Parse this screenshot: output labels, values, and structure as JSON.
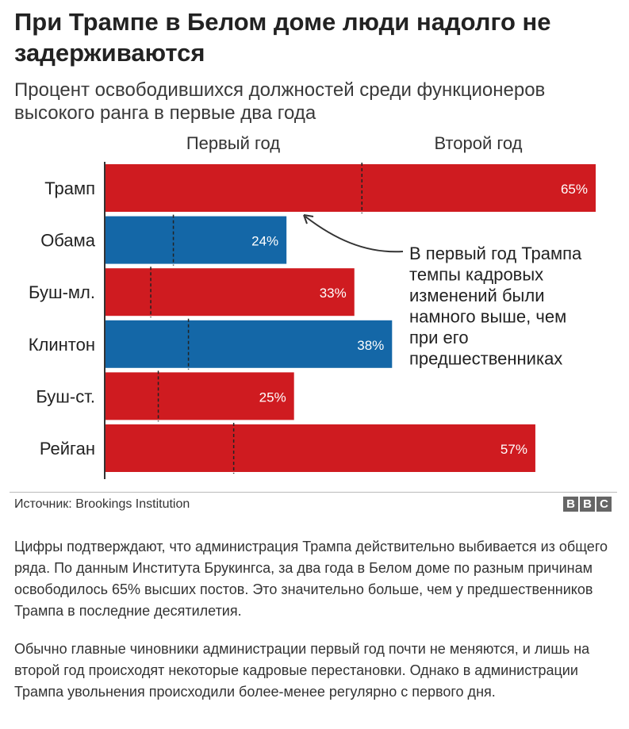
{
  "headline": "При Трампе в Белом доме люди надолго не задерживаются",
  "subheadline": "Процент освободившихся должностей среди функционеров высокого ранга в первые два года",
  "chart_data": {
    "type": "bar",
    "orientation": "horizontal",
    "column_headers": [
      "Первый год",
      "Второй год"
    ],
    "categories": [
      "Трамп",
      "Обама",
      "Буш-мл.",
      "Клинтон",
      "Буш-ст.",
      "Рейган"
    ],
    "values": [
      65,
      24,
      33,
      38,
      25,
      57
    ],
    "value_labels": [
      "65%",
      "24%",
      "33%",
      "38%",
      "25%",
      "57%"
    ],
    "first_year_values": [
      34,
      9,
      6,
      11,
      7,
      17
    ],
    "bar_colors": [
      "#cf1b20",
      "#1467a7",
      "#cf1b20",
      "#1467a7",
      "#cf1b20",
      "#cf1b20"
    ],
    "xlim": [
      0,
      65
    ],
    "annotation": {
      "lines": [
        "В первый год Трампа",
        "темпы кадровых",
        "изменений были",
        "намного выше, чем",
        "при его",
        "предшественниках"
      ]
    }
  },
  "footer": {
    "source": "Источник: Brookings Institution",
    "logo_letters": [
      "B",
      "B",
      "C"
    ]
  },
  "article": {
    "p1": "Цифры подтверждают, что администрация Трампа действительно выбивается из общего ряда. По данным Института Брукингса, за два года в Белом доме по разным причинам освободилось 65% высших постов. Это значительно больше, чем у предшественников Трампа в последние десятилетия.",
    "p2": "Обычно главные чиновники администрации первый год почти не меняются, и лишь на второй год происходят некоторые кадровые перестановки. Однако в администрации Трампа увольнения происходили более-менее регулярно с первого дня."
  }
}
